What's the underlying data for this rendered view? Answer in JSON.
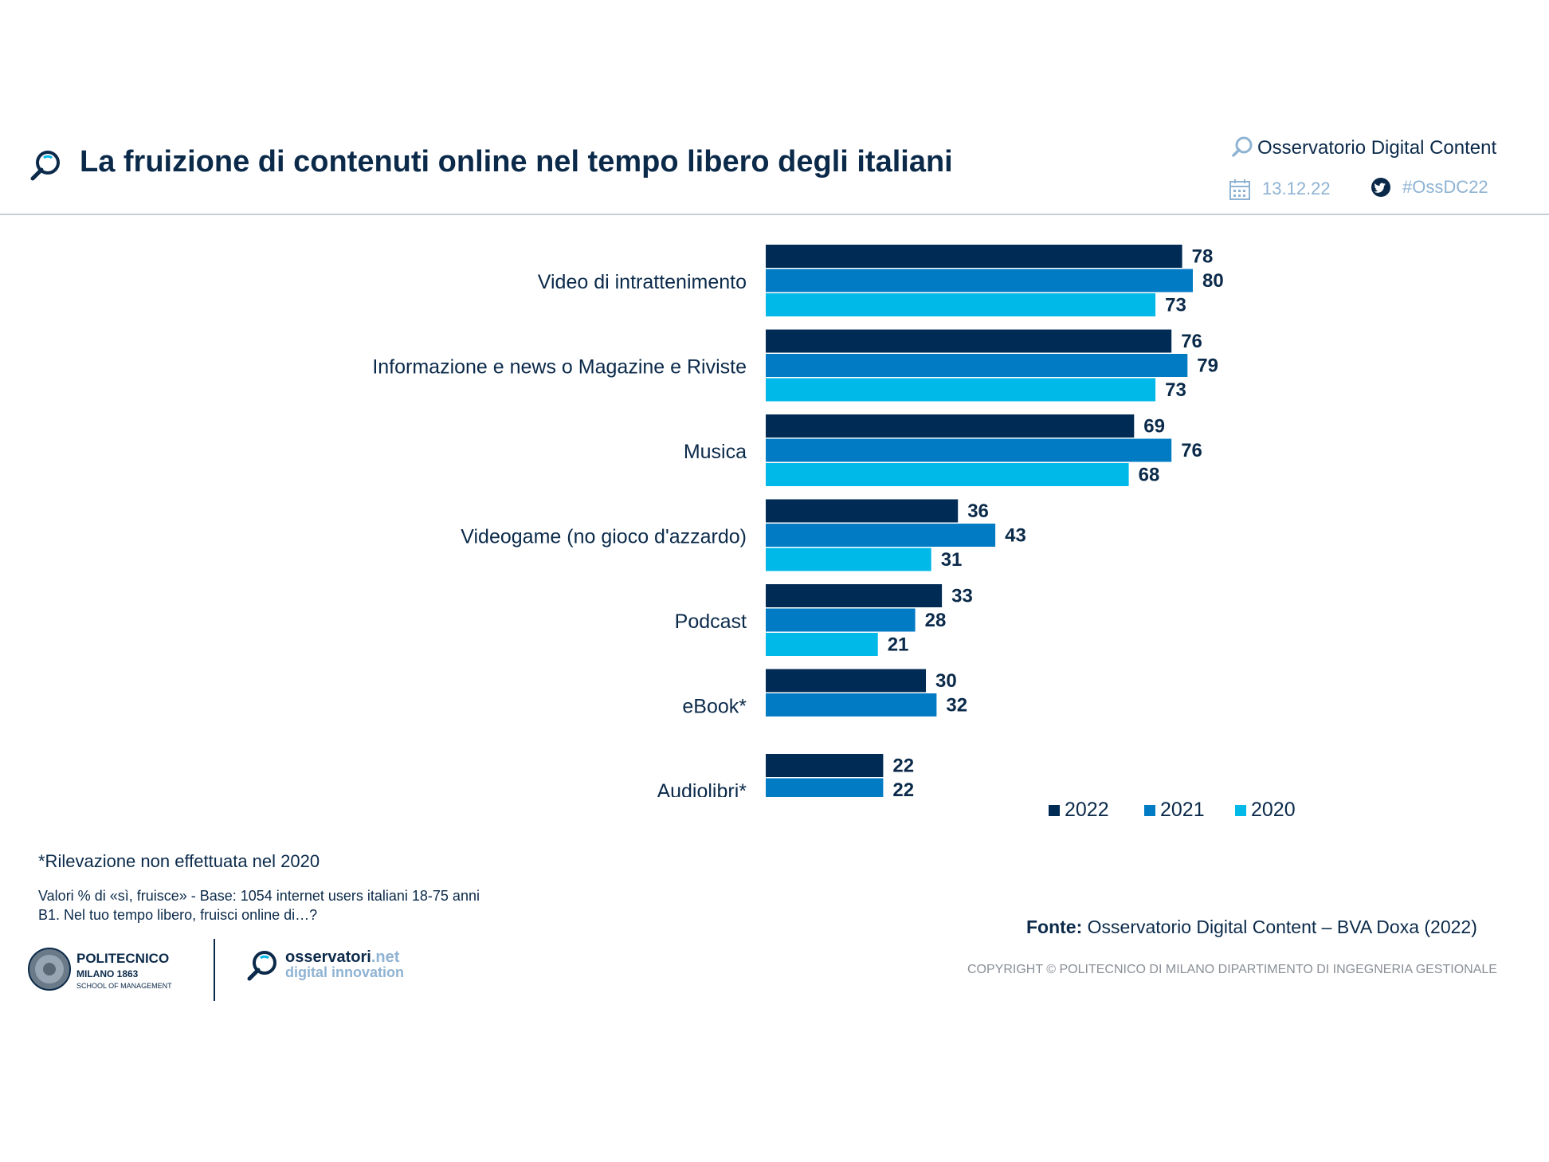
{
  "header": {
    "title": "La fruizione di contenuti online nel tempo libero degli italiani",
    "org_name": "Osservatorio Digital Content",
    "date": "13.12.22",
    "hashtag": "#OssDC22"
  },
  "chart_data": {
    "type": "bar",
    "orientation": "horizontal",
    "categories": [
      "Video di intrattenimento",
      "Informazione e news o Magazine e Riviste",
      "Musica",
      "Videogame (no gioco d'azzardo)",
      "Podcast",
      "eBook*",
      "Audiolibri*"
    ],
    "series": [
      {
        "name": "2022",
        "color": "#002b55",
        "values": [
          78,
          76,
          69,
          36,
          33,
          30,
          22
        ]
      },
      {
        "name": "2021",
        "color": "#007bc4",
        "values": [
          80,
          79,
          76,
          43,
          28,
          32,
          22
        ]
      },
      {
        "name": "2020",
        "color": "#00b9e8",
        "values": [
          73,
          73,
          68,
          31,
          21,
          null,
          null
        ]
      }
    ],
    "xlim": [
      0,
      100
    ],
    "grid": false,
    "legend_position": "bottom-right"
  },
  "notes": {
    "missing": "*Rilevazione non effettuata nel 2020",
    "base": "Valori % di «sì, fruisce» - Base: 1054 internet users italiani 18-75 anni",
    "question": "B1. Nel tuo tempo libero, fruisci online di…?"
  },
  "footer": {
    "source_label": "Fonte:",
    "source_text": "Osservatorio Digital Content – BVA Doxa (2022)",
    "copyright": "COPYRIGHT © POLITECNICO DI MILANO DIPARTIMENTO DI INGEGNERIA GESTIONALE",
    "poli_name": "POLITECNICO",
    "poli_sub": "MILANO 1863",
    "poli_school": "SCHOOL OF MANAGEMENT",
    "oss_name_a": "osservatori",
    "oss_name_b": ".net",
    "oss_tag": "digital innovation"
  }
}
